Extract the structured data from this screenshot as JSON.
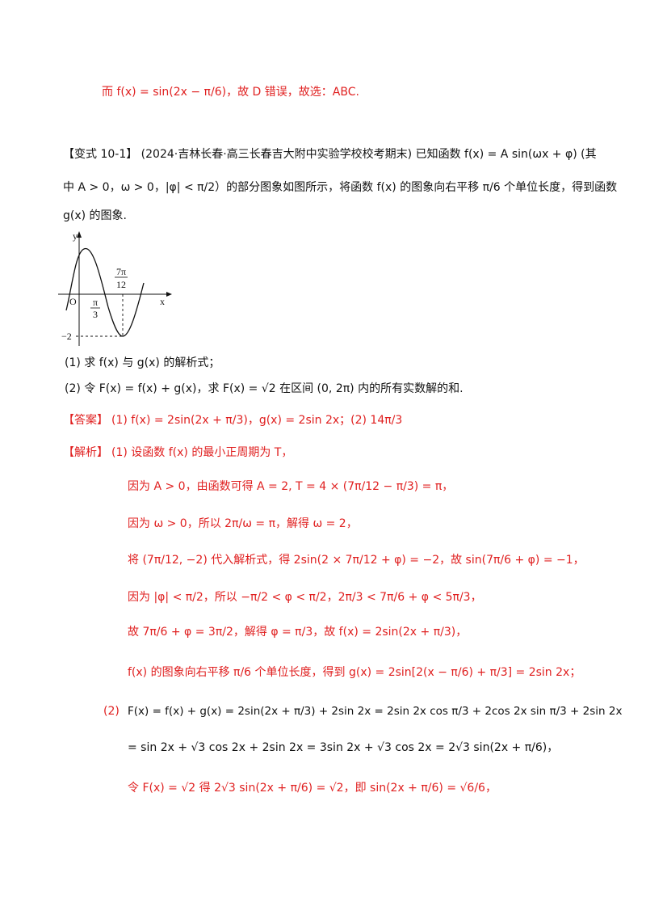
{
  "lines": {
    "l01": "而 f(x) = sin(2x − π/6)，故 D 错误，故选：ABC.",
    "l02": "【变式 10-1】 (2024·吉林长春·高三长春吉大附中实验学校校考期末) 已知函数 f(x) = A sin(ωx + φ) (其",
    "l03": "中 A > 0，ω > 0，|φ| < π/2）的部分图象如图所示，将函数 f(x) 的图象向右平移 π/6 个单位长度，得到函数",
    "l04": "g(x) 的图象.",
    "l05": "(1) 求 f(x) 与 g(x) 的解析式；",
    "l06": "(2) 令 F(x) = f(x) + g(x)，求 F(x) = √2 在区间 (0, 2π) 内的所有实数解的和.",
    "l07a": "【答案】",
    "l07b": "(1) f(x) = 2sin(2x + π/3)，g(x) = 2sin 2x；(2) 14π/3",
    "l08a": "【解析】",
    "l08b": "(1) 设函数 f(x) 的最小正周期为 T，",
    "l09": "因为 A > 0，由函数可得 A = 2, T = 4 × (7π/12 − π/3) = π，",
    "l10": "因为 ω > 0，所以 2π/ω = π，解得 ω = 2，",
    "l11": "将 (7π/12, −2) 代入解析式，得 2sin(2 × 7π/12 + φ) = −2，故 sin(7π/6 + φ) = −1，",
    "l12": "因为 |φ| < π/2，所以 −π/2 < φ < π/2，2π/3 < 7π/6 + φ < 5π/3，",
    "l13": "故 7π/6 + φ = 3π/2，解得 φ = π/3，故 f(x) = 2sin(2x + π/3)，",
    "l14": "f(x) 的图象向右平移 π/6 个单位长度，得到 g(x) = 2sin[2(x − π/6) + π/3] = 2sin 2x；",
    "l15a": "(2)",
    "l15b": "F(x) = f(x) + g(x) = 2sin(2x + π/3) + 2sin 2x = 2sin 2x cos π/3 + 2cos 2x sin π/3 + 2sin 2x",
    "l16": "= sin 2x + √3 cos 2x + 2sin 2x = 3sin 2x + √3 cos 2x = 2√3 sin(2x + π/6)，",
    "l17": "令 F(x) = √2 得 2√3 sin(2x + π/6) = √2，即 sin(2x + π/6) = √6/6，"
  },
  "graph": {
    "y_label": "y",
    "x_label": "x",
    "origin_label": "O",
    "label_pi_3": "π/3",
    "label_7pi_12": "7π/12",
    "label_min": "−2",
    "label_pi3_num": "π",
    "label_pi3_den": "3",
    "label_7pi12_num": "7π",
    "label_7pi12_den": "12"
  }
}
